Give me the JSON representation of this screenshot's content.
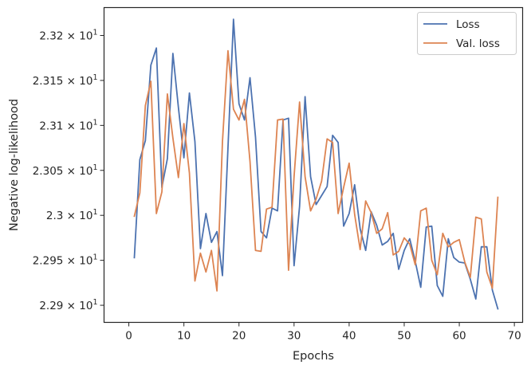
{
  "chart_data": {
    "type": "line",
    "title": "",
    "xlabel": "Epochs",
    "ylabel": "Negative log-likelihood",
    "xlim": [
      -4.5,
      71.5
    ],
    "ylim": [
      22.881,
      23.231
    ],
    "grid": false,
    "legend_position": "top-right",
    "xticks": [
      0,
      10,
      20,
      30,
      40,
      50,
      60,
      70
    ],
    "xtick_labels": [
      "0",
      "10",
      "20",
      "30",
      "40",
      "50",
      "60",
      "70"
    ],
    "yticks": [
      22.9,
      22.95,
      23.0,
      23.05,
      23.1,
      23.15,
      23.2
    ],
    "ytick_labels": [
      {
        "mantissa": "2.29",
        "base": "10",
        "exp": "1"
      },
      {
        "mantissa": "2.295",
        "base": "10",
        "exp": "1"
      },
      {
        "mantissa": "2.3",
        "base": "10",
        "exp": "1"
      },
      {
        "mantissa": "2.305",
        "base": "10",
        "exp": "1"
      },
      {
        "mantissa": "2.31",
        "base": "10",
        "exp": "1"
      },
      {
        "mantissa": "2.315",
        "base": "10",
        "exp": "1"
      },
      {
        "mantissa": "2.32",
        "base": "10",
        "exp": "1"
      }
    ],
    "times_symbol": "×",
    "x": [
      1,
      2,
      3,
      4,
      5,
      6,
      7,
      8,
      9,
      10,
      11,
      12,
      13,
      14,
      15,
      16,
      17,
      18,
      19,
      20,
      21,
      22,
      23,
      24,
      25,
      26,
      27,
      28,
      29,
      30,
      31,
      32,
      33,
      34,
      35,
      36,
      37,
      38,
      39,
      40,
      41,
      42,
      43,
      44,
      45,
      46,
      47,
      48,
      49,
      50,
      51,
      52,
      53,
      54,
      55,
      56,
      57,
      58,
      59,
      60,
      61,
      62,
      63,
      64,
      65,
      66,
      67
    ],
    "series": [
      {
        "name": "Loss",
        "color": "#4c72b0",
        "values": [
          22.953,
          23.062,
          23.083,
          23.167,
          23.186,
          23.031,
          23.063,
          23.18,
          23.12,
          23.064,
          23.136,
          23.082,
          22.963,
          23.002,
          22.97,
          22.982,
          22.933,
          23.075,
          23.218,
          23.124,
          23.106,
          23.153,
          23.087,
          22.982,
          22.975,
          23.008,
          23.005,
          23.106,
          23.108,
          22.944,
          23.01,
          23.132,
          23.043,
          23.012,
          23.022,
          23.032,
          23.089,
          23.081,
          22.988,
          23.002,
          23.034,
          22.985,
          22.961,
          23.004,
          22.989,
          22.967,
          22.971,
          22.98,
          22.94,
          22.961,
          22.974,
          22.949,
          22.92,
          22.987,
          22.988,
          22.922,
          22.91,
          22.974,
          22.953,
          22.948,
          22.947,
          22.929,
          22.907,
          22.965,
          22.965,
          22.917,
          22.896
        ]
      },
      {
        "name": "Val. loss",
        "color": "#dd8452",
        "values": [
          22.999,
          23.025,
          23.122,
          23.149,
          23.002,
          23.026,
          23.135,
          23.086,
          23.042,
          23.102,
          23.047,
          22.927,
          22.958,
          22.937,
          22.961,
          22.916,
          23.082,
          23.183,
          23.118,
          23.106,
          23.129,
          23.06,
          22.961,
          22.96,
          23.007,
          23.009,
          23.106,
          23.107,
          22.939,
          23.043,
          23.126,
          23.043,
          23.005,
          23.018,
          23.038,
          23.085,
          23.081,
          23.002,
          23.031,
          23.058,
          23.001,
          22.962,
          23.016,
          23.003,
          22.98,
          22.985,
          23.003,
          22.956,
          22.96,
          22.975,
          22.968,
          22.945,
          23.005,
          23.008,
          22.95,
          22.934,
          22.98,
          22.965,
          22.97,
          22.973,
          22.948,
          22.931,
          22.998,
          22.996,
          22.937,
          22.919,
          23.02
        ]
      }
    ]
  }
}
